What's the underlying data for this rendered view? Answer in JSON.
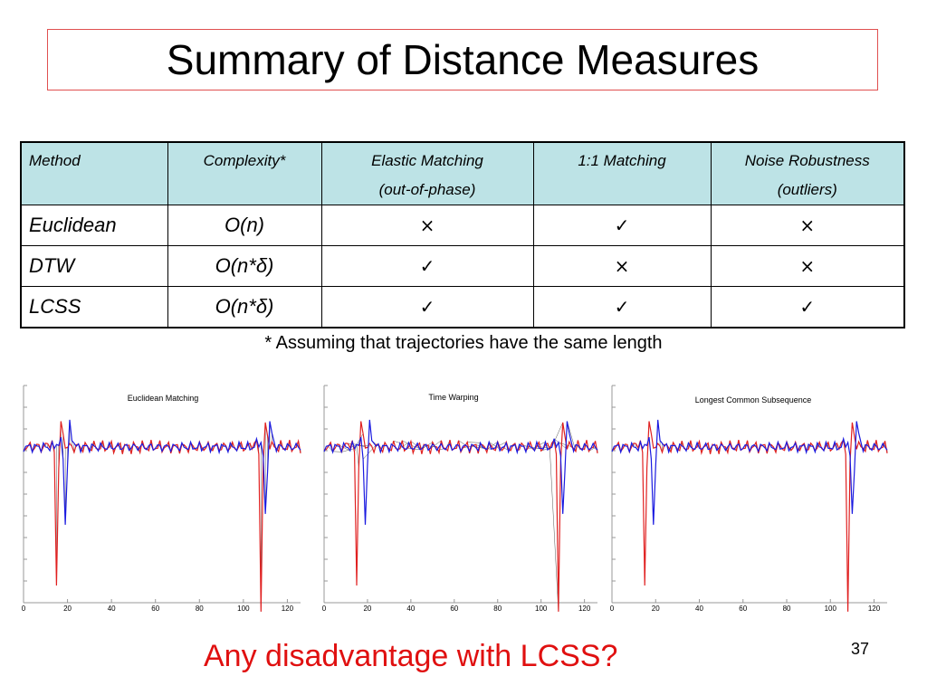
{
  "title": "Summary of Distance Measures",
  "table": {
    "headers": [
      {
        "line1": "Method",
        "line2": ""
      },
      {
        "line1": "Complexity*",
        "line2": ""
      },
      {
        "line1": "Elastic Matching",
        "line2": "(out-of-phase)"
      },
      {
        "line1": "1:1  Matching",
        "line2": ""
      },
      {
        "line1": "Noise Robustness",
        "line2": "(outliers)"
      }
    ],
    "rows": [
      {
        "method": "Euclidean",
        "complexity": "O(n)",
        "elastic": "×",
        "one_to_one": "✓",
        "noise": "×"
      },
      {
        "method": "DTW",
        "complexity": "O(n*δ)",
        "elastic": "✓",
        "one_to_one": "×",
        "noise": "×"
      },
      {
        "method": "LCSS",
        "complexity": "O(n*δ)",
        "elastic": "✓",
        "one_to_one": "✓",
        "noise": "✓"
      }
    ]
  },
  "footnote": "* Assuming that trajectories have the same length",
  "plots": [
    {
      "title": "Euclidean Matching"
    },
    {
      "title": "Time Warping"
    },
    {
      "title": "Longest Common Subsequence"
    }
  ],
  "x_ticks": [
    "0",
    "20",
    "40",
    "60",
    "80",
    "100",
    "120"
  ],
  "series_colors": {
    "series_a": "#e02020",
    "series_b": "#1a1ae0",
    "connectors": "#555555"
  },
  "question": "Any disadvantage with LCSS?",
  "page_number": "37"
}
